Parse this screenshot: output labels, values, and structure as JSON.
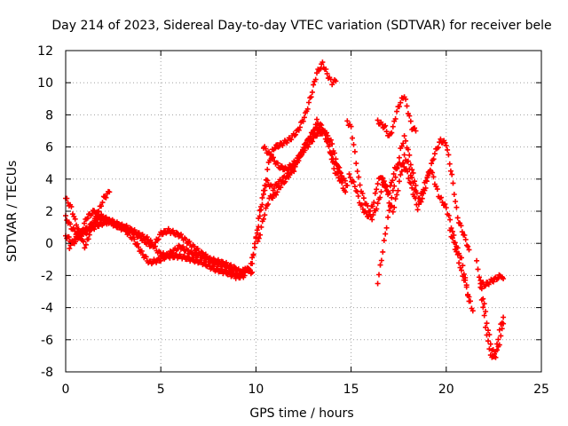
{
  "chart_data": {
    "type": "scatter",
    "title": "Day 214 of 2023, Sidereal Day-to-day VTEC variation (SDTVAR) for receiver bele",
    "xlabel": "GPS time / hours",
    "ylabel": "SDTVAR / TECUs",
    "xlim": [
      0,
      25
    ],
    "ylim": [
      -8,
      12
    ],
    "xticks": [
      0,
      5,
      10,
      15,
      20,
      25
    ],
    "yticks": [
      -8,
      -6,
      -4,
      -2,
      0,
      2,
      4,
      6,
      8,
      10,
      12
    ],
    "grid": true,
    "marker": "+",
    "series": [
      {
        "name": "SDTVAR",
        "color": "#ff0000",
        "tracks": [
          [
            [
              0.0,
              2.8
            ],
            [
              0.3,
              2.2
            ],
            [
              0.5,
              1.4
            ],
            [
              0.8,
              0.4
            ],
            [
              1.0,
              -0.2
            ],
            [
              1.2,
              0.3
            ],
            [
              1.3,
              1.0
            ],
            [
              1.6,
              1.6
            ],
            [
              1.8,
              2.2
            ],
            [
              2.0,
              2.8
            ],
            [
              2.3,
              3.2
            ]
          ],
          [
            [
              0.0,
              1.6
            ],
            [
              0.3,
              1.0
            ],
            [
              0.6,
              0.6
            ],
            [
              1.0,
              0.8
            ],
            [
              1.4,
              1.2
            ],
            [
              1.8,
              1.6
            ],
            [
              2.2,
              1.4
            ],
            [
              2.8,
              1.0
            ],
            [
              3.4,
              0.8
            ],
            [
              3.9,
              0.4
            ],
            [
              4.3,
              0.0
            ],
            [
              4.6,
              -0.2
            ],
            [
              5.0,
              0.6
            ],
            [
              5.4,
              0.8
            ],
            [
              6.0,
              0.5
            ],
            [
              6.5,
              0.0
            ],
            [
              7.0,
              -0.5
            ],
            [
              7.6,
              -1.0
            ],
            [
              8.2,
              -1.2
            ],
            [
              8.8,
              -1.5
            ],
            [
              9.2,
              -1.8
            ],
            [
              9.6,
              -1.6
            ]
          ],
          [
            [
              0.0,
              0.5
            ],
            [
              0.4,
              0.0
            ],
            [
              0.8,
              0.6
            ],
            [
              1.1,
              1.6
            ],
            [
              1.5,
              2.0
            ],
            [
              2.0,
              1.6
            ],
            [
              2.6,
              1.2
            ],
            [
              3.2,
              1.0
            ],
            [
              3.8,
              0.6
            ],
            [
              4.4,
              0.2
            ],
            [
              4.9,
              -0.6
            ],
            [
              5.3,
              -0.8
            ],
            [
              6.0,
              -0.8
            ],
            [
              6.6,
              -1.0
            ],
            [
              7.2,
              -1.2
            ],
            [
              7.8,
              -1.6
            ],
            [
              8.4,
              -1.8
            ],
            [
              9.0,
              -2.1
            ],
            [
              9.4,
              -2.0
            ]
          ],
          [
            [
              0.2,
              -0.2
            ],
            [
              0.6,
              0.4
            ],
            [
              1.2,
              0.8
            ],
            [
              1.8,
              1.2
            ],
            [
              2.4,
              1.4
            ],
            [
              3.0,
              1.0
            ],
            [
              3.6,
              0.2
            ],
            [
              4.0,
              -0.6
            ],
            [
              4.4,
              -1.2
            ],
            [
              5.0,
              -1.0
            ],
            [
              5.5,
              -0.6
            ],
            [
              6.0,
              -0.2
            ],
            [
              6.6,
              -0.6
            ],
            [
              7.2,
              -0.8
            ],
            [
              7.8,
              -1.2
            ],
            [
              8.4,
              -1.4
            ],
            [
              9.0,
              -2.0
            ],
            [
              9.5,
              -1.6
            ],
            [
              9.8,
              -1.8
            ]
          ],
          [
            [
              9.6,
              -1.8
            ],
            [
              9.8,
              -1.0
            ],
            [
              10.0,
              0.2
            ],
            [
              10.2,
              1.6
            ],
            [
              10.4,
              3.0
            ],
            [
              10.6,
              4.6
            ],
            [
              10.8,
              5.6
            ],
            [
              11.0,
              6.0
            ],
            [
              11.4,
              6.2
            ],
            [
              11.8,
              6.5
            ],
            [
              12.2,
              7.0
            ],
            [
              12.6,
              8.0
            ],
            [
              12.9,
              9.2
            ],
            [
              13.2,
              10.6
            ],
            [
              13.5,
              11.2
            ],
            [
              13.8,
              10.4
            ],
            [
              14.0,
              10.0
            ],
            [
              14.2,
              10.1
            ]
          ],
          [
            [
              9.8,
              -1.2
            ],
            [
              10.0,
              0.4
            ],
            [
              10.2,
              2.0
            ],
            [
              10.4,
              3.2
            ],
            [
              10.6,
              3.8
            ],
            [
              10.9,
              3.4
            ],
            [
              11.2,
              3.8
            ],
            [
              11.6,
              4.2
            ],
            [
              12.0,
              4.6
            ],
            [
              12.3,
              5.4
            ],
            [
              12.6,
              6.2
            ],
            [
              12.9,
              6.6
            ],
            [
              13.2,
              7.6
            ],
            [
              13.5,
              7.2
            ],
            [
              13.8,
              6.4
            ],
            [
              14.1,
              4.6
            ],
            [
              14.4,
              4.0
            ],
            [
              14.7,
              3.2
            ]
          ],
          [
            [
              10.1,
              0.0
            ],
            [
              10.4,
              1.6
            ],
            [
              10.7,
              2.8
            ],
            [
              11.0,
              3.0
            ],
            [
              11.3,
              3.6
            ],
            [
              11.6,
              4.0
            ],
            [
              12.0,
              4.8
            ],
            [
              12.4,
              5.6
            ],
            [
              12.8,
              6.6
            ],
            [
              13.2,
              7.2
            ],
            [
              13.6,
              6.8
            ],
            [
              14.0,
              5.4
            ],
            [
              14.4,
              4.4
            ],
            [
              14.8,
              3.6
            ]
          ],
          [
            [
              10.4,
              6.0
            ],
            [
              10.8,
              5.4
            ],
            [
              11.2,
              4.8
            ],
            [
              11.6,
              4.6
            ],
            [
              12.0,
              5.0
            ],
            [
              12.4,
              5.6
            ],
            [
              12.8,
              6.2
            ],
            [
              13.2,
              6.8
            ],
            [
              13.6,
              7.0
            ],
            [
              14.0,
              6.2
            ],
            [
              14.2,
              5.2
            ],
            [
              14.5,
              4.2
            ]
          ],
          [
            [
              14.8,
              7.6
            ],
            [
              15.0,
              7.2
            ],
            [
              15.2,
              5.6
            ],
            [
              15.4,
              4.0
            ],
            [
              15.6,
              3.0
            ],
            [
              15.8,
              2.4
            ],
            [
              16.0,
              2.0
            ],
            [
              16.2,
              2.6
            ],
            [
              16.4,
              3.8
            ],
            [
              16.6,
              4.2
            ],
            [
              16.8,
              3.6
            ],
            [
              17.0,
              2.6
            ],
            [
              17.2,
              2.0
            ],
            [
              17.4,
              3.0
            ],
            [
              17.6,
              4.2
            ],
            [
              17.8,
              5.4
            ],
            [
              18.0,
              5.0
            ],
            [
              18.2,
              4.0
            ],
            [
              18.4,
              3.2
            ],
            [
              18.6,
              2.8
            ],
            [
              18.8,
              3.4
            ],
            [
              19.0,
              4.2
            ],
            [
              19.2,
              4.6
            ],
            [
              19.4,
              3.8
            ],
            [
              19.6,
              3.0
            ],
            [
              19.8,
              2.6
            ],
            [
              20.0,
              2.2
            ],
            [
              20.2,
              1.4
            ],
            [
              20.4,
              0.4
            ],
            [
              20.6,
              -0.4
            ],
            [
              20.8,
              -1.0
            ],
            [
              21.0,
              -2.2
            ],
            [
              21.2,
              -3.6
            ]
          ],
          [
            [
              14.9,
              4.2
            ],
            [
              15.2,
              3.6
            ],
            [
              15.5,
              2.4
            ],
            [
              15.8,
              1.8
            ],
            [
              16.1,
              1.6
            ],
            [
              16.4,
              2.4
            ],
            [
              16.7,
              3.8
            ],
            [
              17.0,
              3.2
            ],
            [
              17.3,
              4.6
            ],
            [
              17.6,
              5.0
            ],
            [
              17.9,
              4.6
            ],
            [
              18.2,
              3.4
            ],
            [
              18.5,
              2.2
            ],
            [
              18.8,
              3.0
            ],
            [
              19.1,
              4.4
            ],
            [
              19.4,
              5.6
            ],
            [
              19.7,
              6.4
            ],
            [
              20.0,
              6.2
            ],
            [
              20.3,
              4.2
            ],
            [
              20.6,
              1.6
            ],
            [
              20.9,
              0.6
            ],
            [
              21.2,
              -0.4
            ]
          ],
          [
            [
              16.4,
              7.6
            ],
            [
              16.8,
              7.2
            ],
            [
              17.0,
              6.6
            ],
            [
              17.2,
              7.2
            ],
            [
              17.4,
              8.2
            ],
            [
              17.6,
              8.8
            ],
            [
              17.8,
              9.2
            ],
            [
              18.0,
              8.2
            ],
            [
              18.2,
              7.2
            ],
            [
              18.4,
              7.0
            ]
          ],
          [
            [
              16.4,
              -2.4
            ],
            [
              16.6,
              -1.0
            ],
            [
              16.8,
              0.6
            ],
            [
              17.0,
              2.0
            ],
            [
              17.2,
              3.2
            ],
            [
              17.4,
              4.6
            ],
            [
              17.6,
              5.8
            ],
            [
              17.8,
              6.6
            ],
            [
              18.0,
              5.8
            ],
            [
              18.2,
              4.6
            ],
            [
              18.4,
              3.6
            ]
          ],
          [
            [
              20.2,
              0.8
            ],
            [
              20.4,
              0.0
            ],
            [
              20.6,
              -0.8
            ],
            [
              20.8,
              -1.8
            ],
            [
              21.0,
              -2.4
            ],
            [
              21.2,
              -3.4
            ],
            [
              21.4,
              -4.2
            ]
          ],
          [
            [
              21.6,
              -1.2
            ],
            [
              21.8,
              -2.4
            ],
            [
              22.0,
              -3.8
            ],
            [
              22.2,
              -5.4
            ],
            [
              22.4,
              -6.6
            ],
            [
              22.6,
              -7.0
            ],
            [
              22.8,
              -6.2
            ],
            [
              23.0,
              -5.0
            ]
          ],
          [
            [
              21.8,
              -2.8
            ],
            [
              22.0,
              -4.6
            ],
            [
              22.2,
              -6.2
            ],
            [
              22.4,
              -7.2
            ],
            [
              22.6,
              -6.8
            ],
            [
              22.8,
              -5.4
            ],
            [
              23.0,
              -4.6
            ]
          ],
          [
            [
              21.8,
              -2.4
            ],
            [
              22.0,
              -2.6
            ],
            [
              22.3,
              -2.4
            ],
            [
              22.6,
              -2.2
            ],
            [
              22.9,
              -2.0
            ],
            [
              23.0,
              -2.2
            ]
          ]
        ]
      }
    ]
  }
}
